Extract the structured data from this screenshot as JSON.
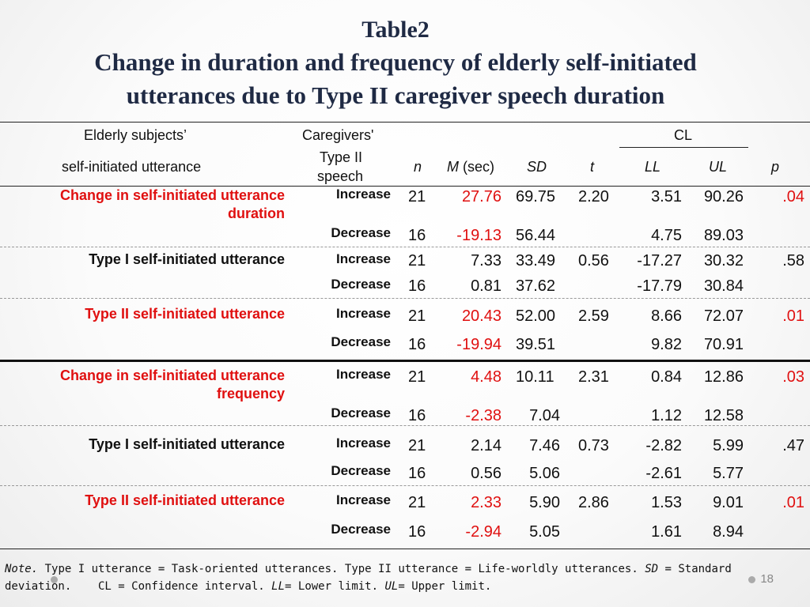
{
  "title": {
    "line1": "Table2",
    "line2": "Change in duration and frequency of elderly self-initiated",
    "line3": "utterances due to Type II caregiver speech duration"
  },
  "header": {
    "elderly_subjects": "Elderly subjects’",
    "self_initiated": "self-initiated utterance",
    "caregivers": "Caregivers'",
    "type2_speech_1": "Type II",
    "type2_speech_2": "speech",
    "n": "n",
    "m": "M",
    "m_unit": "(sec)",
    "sd": "SD",
    "t": "t",
    "cl": "CL",
    "ll": "LL",
    "ul": "UL",
    "p": "p"
  },
  "rows": [
    {
      "label1": "Change in self-initiated utterance",
      "label2": "duration",
      "inc": "Increase",
      "dec": "Decrease",
      "n1": "21",
      "m1": "27.76",
      "sd1": "69.75",
      "t": "2.20",
      "ll1": "3.51",
      "ul1": "90.26",
      "p": ".04",
      "n2": "16",
      "m2": "-19.13",
      "sd2": "56.44",
      "ll2": "4.75",
      "ul2": "89.03"
    },
    {
      "label1": "Type I self-initiated utterance",
      "inc": "Increase",
      "dec": "Decrease",
      "n1": "21",
      "m1": "7.33",
      "sd1": "33.49",
      "t": "0.56",
      "ll1": "-17.27",
      "ul1": "30.32",
      "p": ".58",
      "n2": "16",
      "m2": "0.81",
      "sd2": "37.62",
      "ll2": "-17.79",
      "ul2": "30.84"
    },
    {
      "label1": "Type II self-initiated utterance",
      "inc": "Increase",
      "dec": "Decrease",
      "n1": "21",
      "m1": "20.43",
      "sd1": "52.00",
      "t": "2.59",
      "ll1": "8.66",
      "ul1": "72.07",
      "p": ".01",
      "n2": "16",
      "m2": "-19.94",
      "sd2": "39.51",
      "ll2": "9.82",
      "ul2": "70.91"
    },
    {
      "label1": "Change in self-initiated utterance",
      "label2": "frequency",
      "inc": "Increase",
      "dec": "Decrease",
      "n1": "21",
      "m1": "4.48",
      "sd1": "10.11",
      "t": "2.31",
      "ll1": "0.84",
      "ul1": "12.86",
      "p": ".03",
      "n2": "16",
      "m2": "-2.38",
      "sd2": "7.04",
      "ll2": "1.12",
      "ul2": "12.58"
    },
    {
      "label1": "Type I self-initiated utterance",
      "inc": "Increase",
      "dec": "Decrease",
      "n1": "21",
      "m1": "2.14",
      "sd1": "7.46",
      "t": "0.73",
      "ll1": "-2.82",
      "ul1": "5.99",
      "p": ".47",
      "n2": "16",
      "m2": "0.56",
      "sd2": "5.06",
      "ll2": "-2.61",
      "ul2": "5.77"
    },
    {
      "label1": "Type II self-initiated utterance",
      "inc": "Increase",
      "dec": "Decrease",
      "n1": "21",
      "m1": "2.33",
      "sd1": "5.90",
      "t": "2.86",
      "ll1": "1.53",
      "ul1": "9.01",
      "p": ".01",
      "n2": "16",
      "m2": "-2.94",
      "sd2": "5.05",
      "ll2": "1.61",
      "ul2": "8.94"
    }
  ],
  "note": {
    "note_word": "Note.",
    "line1_rest": "Type I utterance = Task-oriented utterances. Type II utterance = Life-worldly utterances.",
    "sd_word": "SD",
    "sd_rest": "= Standard",
    "line2a": "deviation.    CL = Confidence interval.",
    "ll_word": "LL",
    "ll_rest": "= Lower limit.",
    "ul_word": "UL",
    "ul_rest": "= Upper limit."
  },
  "page_number": "18",
  "colors": {
    "highlight": "#e01010",
    "title": "#1f2a44"
  }
}
